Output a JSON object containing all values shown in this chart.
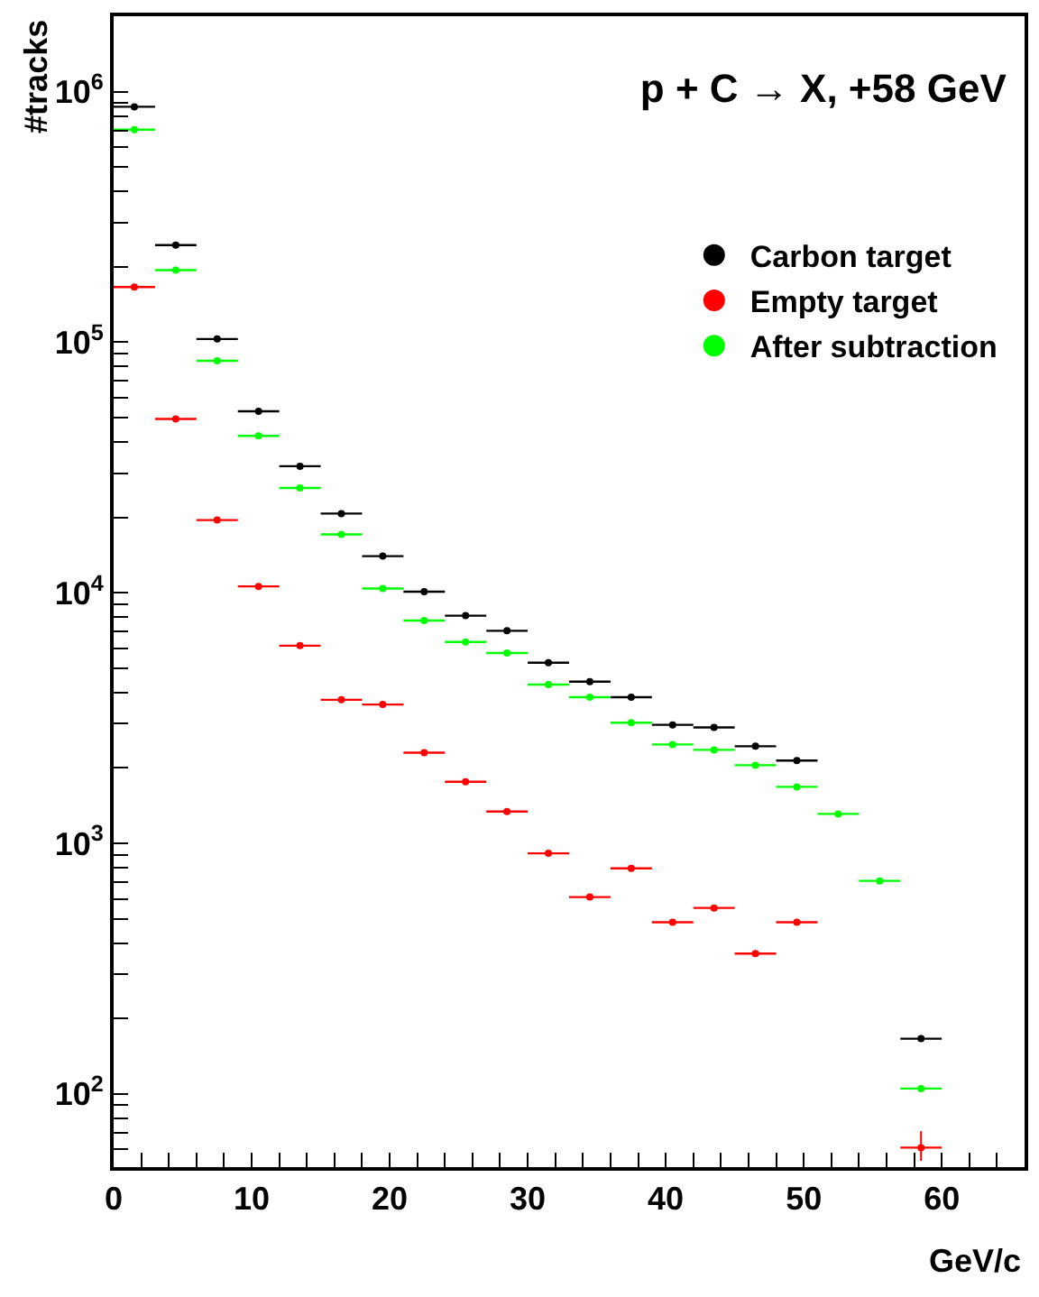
{
  "chart_data": {
    "type": "scatter",
    "title": "p + C → X, +58 GeV",
    "xlabel": "GeV/c",
    "ylabel": "#tracks",
    "x": [
      1.5,
      4.5,
      7.5,
      10.5,
      13.5,
      16.5,
      19.5,
      22.5,
      25.5,
      28.5,
      31.5,
      34.5,
      37.5,
      40.5,
      43.5,
      46.5,
      49.5,
      52.5,
      55.5,
      58.5
    ],
    "series": [
      {
        "name": "Carbon target",
        "color": "#000000",
        "values": [
          870000,
          244000,
          103000,
          53000,
          32000,
          20700,
          14000,
          10100,
          8100,
          7050,
          5260,
          4420,
          3830,
          2970,
          2900,
          2440,
          2140,
          null,
          null,
          166
        ],
        "xerrors": [
          1.5,
          1.5,
          1.5,
          1.5,
          1.5,
          1.5,
          1.5,
          1.5,
          1.5,
          1.5,
          1.5,
          1.5,
          1.5,
          1.5,
          1.5,
          1.5,
          1.5,
          null,
          null,
          1.5
        ]
      },
      {
        "name": "Empty target",
        "color": "#ff0000",
        "values": [
          166000,
          49400,
          19500,
          10600,
          6150,
          3740,
          3580,
          2300,
          1760,
          1340,
          912,
          610,
          794,
          484,
          552,
          363,
          484,
          null,
          null,
          61
        ],
        "xerrors": [
          1.5,
          1.5,
          1.5,
          1.5,
          1.5,
          1.5,
          1.5,
          1.5,
          1.5,
          1.5,
          1.5,
          1.5,
          1.5,
          1.5,
          1.5,
          1.5,
          1.5,
          null,
          null,
          1.5
        ],
        "errors": [
          null,
          null,
          null,
          null,
          null,
          null,
          null,
          null,
          null,
          null,
          null,
          null,
          null,
          null,
          null,
          null,
          null,
          null,
          null,
          [
            54,
            71
          ]
        ]
      },
      {
        "name": "After subtraction",
        "color": "#00ff00",
        "values": [
          705000,
          194000,
          84300,
          42300,
          26200,
          17100,
          10400,
          7750,
          6360,
          5750,
          4300,
          3830,
          3030,
          2480,
          2360,
          2050,
          1680,
          1310,
          708,
          105
        ],
        "xerrors": [
          1.5,
          1.5,
          1.5,
          1.5,
          1.5,
          1.5,
          1.5,
          1.5,
          1.5,
          1.5,
          1.5,
          1.5,
          1.5,
          1.5,
          1.5,
          1.5,
          1.5,
          1.5,
          1.5,
          1.5
        ]
      }
    ],
    "xlim": [
      0,
      66
    ],
    "xticks": [
      0,
      {
        "value": 2,
        "label": null
      },
      {
        "value": 4,
        "label": null
      },
      {
        "value": 6,
        "label": null
      },
      {
        "value": 8,
        "label": null
      },
      10,
      {
        "value": 12,
        "label": null
      },
      {
        "value": 14,
        "label": null
      },
      {
        "value": 16,
        "label": null
      },
      {
        "value": 18,
        "label": null
      },
      20,
      {
        "value": 22,
        "label": null
      },
      {
        "value": 24,
        "label": null
      },
      {
        "value": 26,
        "label": null
      },
      {
        "value": 28,
        "label": null
      },
      30,
      {
        "value": 32,
        "label": null
      },
      {
        "value": 34,
        "label": null
      },
      {
        "value": 36,
        "label": null
      },
      {
        "value": 38,
        "label": null
      },
      40,
      {
        "value": 42,
        "label": null
      },
      {
        "value": 44,
        "label": null
      },
      {
        "value": 46,
        "label": null
      },
      {
        "value": 48,
        "label": null
      },
      50,
      {
        "value": 52,
        "label": null
      },
      {
        "value": 54,
        "label": null
      },
      {
        "value": 56,
        "label": null
      },
      {
        "value": 58,
        "label": null
      },
      60,
      {
        "value": 62,
        "label": null
      },
      {
        "value": 64,
        "label": null
      }
    ],
    "ylim": [
      51,
      2000000
    ],
    "log": true,
    "yticks": [
      {
        "value": 60,
        "label": null
      },
      {
        "value": 70,
        "label": null
      },
      {
        "value": 80,
        "label": null
      },
      {
        "value": 90,
        "label": null
      },
      {
        "value": 100,
        "label": "10$^{2}$"
      },
      {
        "value": 200,
        "label": null
      },
      {
        "value": 300,
        "label": null
      },
      {
        "value": 400,
        "label": null
      },
      {
        "value": 500,
        "label": null
      },
      {
        "value": 600,
        "label": null
      },
      {
        "value": 700,
        "label": null
      },
      {
        "value": 800,
        "label": null
      },
      {
        "value": 900,
        "label": null
      },
      {
        "value": 1000,
        "label": "10$^{3}$"
      },
      {
        "value": 2000,
        "label": null
      },
      {
        "value": 3000,
        "label": null
      },
      {
        "value": 4000,
        "label": null
      },
      {
        "value": 5000,
        "label": null
      },
      {
        "value": 6000,
        "label": null
      },
      {
        "value": 7000,
        "label": null
      },
      {
        "value": 8000,
        "label": null
      },
      {
        "value": 9000,
        "label": null
      },
      {
        "value": 10000,
        "label": "10$^{4}$"
      },
      {
        "value": 20000,
        "label": null
      },
      {
        "value": 30000,
        "label": null
      },
      {
        "value": 40000,
        "label": null
      },
      {
        "value": 50000,
        "label": null
      },
      {
        "value": 60000,
        "label": null
      },
      {
        "value": 70000,
        "label": null
      },
      {
        "value": 80000,
        "label": null
      },
      {
        "value": 90000,
        "label": null
      },
      {
        "value": 100000,
        "label": "10$^{5}$"
      },
      {
        "value": 200000,
        "label": null
      },
      {
        "value": 300000,
        "label": null
      },
      {
        "value": 400000,
        "label": null
      },
      {
        "value": 500000,
        "label": null
      },
      {
        "value": 600000,
        "label": null
      },
      {
        "value": 700000,
        "label": null
      },
      {
        "value": 800000,
        "label": null
      },
      {
        "value": 900000,
        "label": null
      },
      {
        "value": 1000000,
        "label": "10$^{6}$"
      }
    ],
    "legend": "top right",
    "marker": "circle"
  }
}
